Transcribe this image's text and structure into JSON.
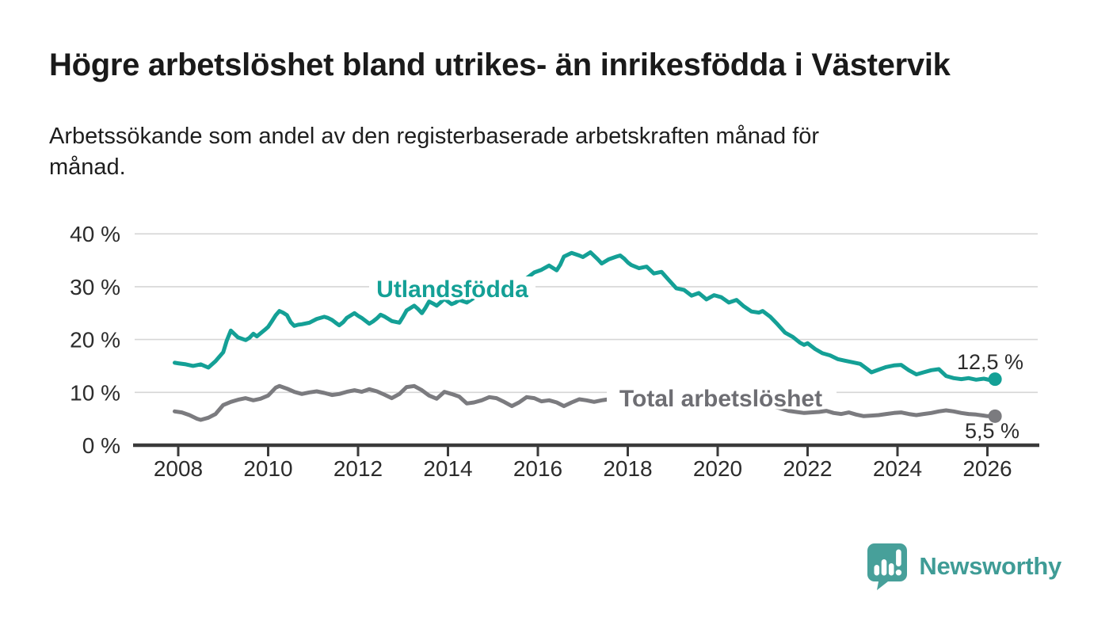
{
  "header": {
    "title": "Högre arbetslöshet bland utrikes- än inrikesfödda i Västervik",
    "subtitle": "Arbetssökande som andel av den registerbaserade arbetskraften månad för månad.",
    "subtitle_lines": [
      "Arbetssökande som andel av den registerbaserade arbetskraften månad för",
      "månad."
    ]
  },
  "footer": {
    "brand": "Newsworthy",
    "logo_icon": "newsworthy-speech-bubble-barchart-icon",
    "brand_color": "#3f9c96"
  },
  "chart_data": {
    "type": "line",
    "title": "Högre arbetslöshet bland utrikes- än inrikesfödda i Västervik",
    "subtitle": "Arbetssökande som andel av den registerbaserade arbetskraften månad för månad.",
    "xlabel": "",
    "ylabel": "",
    "y_unit": "%",
    "grid": "horizontal-only",
    "legend": "inline-series-labels",
    "x_axis": {
      "range": [
        2007.03,
        2027.12
      ],
      "ticks": [
        {
          "value": 2008,
          "label": "2008"
        },
        {
          "value": 2010,
          "label": "2010"
        },
        {
          "value": 2012,
          "label": "2012"
        },
        {
          "value": 2014,
          "label": "2014"
        },
        {
          "value": 2016,
          "label": "2016"
        },
        {
          "value": 2018,
          "label": "2018"
        },
        {
          "value": 2020,
          "label": "2020"
        },
        {
          "value": 2022,
          "label": "2022"
        },
        {
          "value": 2024,
          "label": "2024"
        },
        {
          "value": 2026,
          "label": "2026"
        }
      ]
    },
    "y_axis": {
      "range": [
        0,
        42
      ],
      "ticks": [
        {
          "value": 0,
          "label": "0 %"
        },
        {
          "value": 10,
          "label": "10 %"
        },
        {
          "value": 20,
          "label": "20 %"
        },
        {
          "value": 30,
          "label": "30 %"
        },
        {
          "value": 40,
          "label": "40 %"
        }
      ]
    },
    "style": {
      "grid_color": "#d6d6d6",
      "axis_color": "#3a3a3a",
      "tick_text_color": "#2c2c2c",
      "end_label_color": "#2c2c2c",
      "background": "#ffffff"
    },
    "series": [
      {
        "name": "Utlandsfödda",
        "color": "#14a096",
        "label_color": "#14a096",
        "end_label": "12,5 %",
        "end_value": 12.5,
        "points": [
          [
            2007.92,
            15.6
          ],
          [
            2008.0,
            15.5
          ],
          [
            2008.17,
            15.3
          ],
          [
            2008.33,
            15.0
          ],
          [
            2008.5,
            15.3
          ],
          [
            2008.67,
            14.7
          ],
          [
            2008.83,
            15.9
          ],
          [
            2009.0,
            17.6
          ],
          [
            2009.08,
            19.8
          ],
          [
            2009.17,
            21.7
          ],
          [
            2009.33,
            20.4
          ],
          [
            2009.5,
            19.9
          ],
          [
            2009.58,
            20.3
          ],
          [
            2009.67,
            21.1
          ],
          [
            2009.75,
            20.6
          ],
          [
            2009.92,
            21.8
          ],
          [
            2010.0,
            22.4
          ],
          [
            2010.08,
            23.4
          ],
          [
            2010.17,
            24.6
          ],
          [
            2010.25,
            25.4
          ],
          [
            2010.33,
            25.1
          ],
          [
            2010.42,
            24.6
          ],
          [
            2010.5,
            23.3
          ],
          [
            2010.58,
            22.6
          ],
          [
            2010.67,
            22.8
          ],
          [
            2010.75,
            22.9
          ],
          [
            2010.92,
            23.2
          ],
          [
            2011.08,
            23.9
          ],
          [
            2011.25,
            24.3
          ],
          [
            2011.33,
            24.1
          ],
          [
            2011.42,
            23.7
          ],
          [
            2011.5,
            23.2
          ],
          [
            2011.58,
            22.7
          ],
          [
            2011.67,
            23.3
          ],
          [
            2011.75,
            24.1
          ],
          [
            2011.92,
            25.0
          ],
          [
            2012.0,
            24.5
          ],
          [
            2012.08,
            24.1
          ],
          [
            2012.25,
            23.0
          ],
          [
            2012.33,
            23.4
          ],
          [
            2012.42,
            24.0
          ],
          [
            2012.5,
            24.7
          ],
          [
            2012.58,
            24.4
          ],
          [
            2012.75,
            23.5
          ],
          [
            2012.92,
            23.2
          ],
          [
            2013.0,
            24.3
          ],
          [
            2013.08,
            25.5
          ],
          [
            2013.25,
            26.4
          ],
          [
            2013.33,
            25.8
          ],
          [
            2013.42,
            25.0
          ],
          [
            2013.5,
            26.0
          ],
          [
            2013.58,
            27.2
          ],
          [
            2013.67,
            26.8
          ],
          [
            2013.75,
            26.4
          ],
          [
            2013.83,
            27.0
          ],
          [
            2013.92,
            27.7
          ],
          [
            2014.0,
            27.2
          ],
          [
            2014.08,
            26.7
          ],
          [
            2014.17,
            27.0
          ],
          [
            2014.25,
            27.5
          ],
          [
            2014.42,
            27.0
          ],
          [
            2014.58,
            27.9
          ],
          [
            2014.75,
            28.3
          ],
          [
            2014.92,
            29.0
          ],
          [
            2015.08,
            29.5
          ],
          [
            2015.25,
            30.1
          ],
          [
            2015.42,
            30.8
          ],
          [
            2015.58,
            31.2
          ],
          [
            2015.75,
            31.6
          ],
          [
            2015.92,
            32.7
          ],
          [
            2016.08,
            33.2
          ],
          [
            2016.25,
            34.0
          ],
          [
            2016.42,
            33.1
          ],
          [
            2016.5,
            34.2
          ],
          [
            2016.58,
            35.7
          ],
          [
            2016.75,
            36.4
          ],
          [
            2016.92,
            35.9
          ],
          [
            2017.0,
            35.6
          ],
          [
            2017.17,
            36.5
          ],
          [
            2017.33,
            35.2
          ],
          [
            2017.42,
            34.4
          ],
          [
            2017.58,
            35.2
          ],
          [
            2017.75,
            35.7
          ],
          [
            2017.83,
            35.9
          ],
          [
            2017.92,
            35.3
          ],
          [
            2018.0,
            34.6
          ],
          [
            2018.08,
            34.1
          ],
          [
            2018.25,
            33.5
          ],
          [
            2018.42,
            33.8
          ],
          [
            2018.58,
            32.5
          ],
          [
            2018.75,
            32.8
          ],
          [
            2018.92,
            31.2
          ],
          [
            2019.08,
            29.7
          ],
          [
            2019.25,
            29.4
          ],
          [
            2019.42,
            28.3
          ],
          [
            2019.58,
            28.8
          ],
          [
            2019.75,
            27.6
          ],
          [
            2019.92,
            28.4
          ],
          [
            2020.08,
            28.0
          ],
          [
            2020.25,
            27.0
          ],
          [
            2020.42,
            27.5
          ],
          [
            2020.58,
            26.3
          ],
          [
            2020.75,
            25.3
          ],
          [
            2020.92,
            25.1
          ],
          [
            2021.0,
            25.4
          ],
          [
            2021.17,
            24.3
          ],
          [
            2021.33,
            22.9
          ],
          [
            2021.5,
            21.3
          ],
          [
            2021.67,
            20.5
          ],
          [
            2021.83,
            19.4
          ],
          [
            2021.92,
            19.0
          ],
          [
            2022.0,
            19.3
          ],
          [
            2022.17,
            18.2
          ],
          [
            2022.33,
            17.4
          ],
          [
            2022.5,
            17.0
          ],
          [
            2022.67,
            16.3
          ],
          [
            2022.83,
            16.0
          ],
          [
            2023.0,
            15.7
          ],
          [
            2023.17,
            15.4
          ],
          [
            2023.33,
            14.4
          ],
          [
            2023.42,
            13.8
          ],
          [
            2023.58,
            14.3
          ],
          [
            2023.75,
            14.8
          ],
          [
            2023.92,
            15.1
          ],
          [
            2024.08,
            15.2
          ],
          [
            2024.25,
            14.2
          ],
          [
            2024.42,
            13.4
          ],
          [
            2024.58,
            13.8
          ],
          [
            2024.75,
            14.2
          ],
          [
            2024.92,
            14.4
          ],
          [
            2025.08,
            13.1
          ],
          [
            2025.25,
            12.7
          ],
          [
            2025.42,
            12.5
          ],
          [
            2025.58,
            12.7
          ],
          [
            2025.75,
            12.4
          ],
          [
            2025.92,
            12.6
          ],
          [
            2026.08,
            12.3
          ],
          [
            2026.17,
            12.5
          ]
        ]
      },
      {
        "name": "Total arbetslöshet",
        "color": "#7b7b7f",
        "label_color": "#6e6e73",
        "end_label": "5,5 %",
        "end_value": 5.5,
        "points": [
          [
            2007.92,
            6.4
          ],
          [
            2008.08,
            6.2
          ],
          [
            2008.25,
            5.7
          ],
          [
            2008.42,
            5.0
          ],
          [
            2008.5,
            4.8
          ],
          [
            2008.67,
            5.2
          ],
          [
            2008.83,
            5.9
          ],
          [
            2009.0,
            7.6
          ],
          [
            2009.17,
            8.2
          ],
          [
            2009.33,
            8.6
          ],
          [
            2009.5,
            8.9
          ],
          [
            2009.67,
            8.5
          ],
          [
            2009.83,
            8.8
          ],
          [
            2010.0,
            9.4
          ],
          [
            2010.17,
            10.9
          ],
          [
            2010.25,
            11.2
          ],
          [
            2010.42,
            10.7
          ],
          [
            2010.58,
            10.1
          ],
          [
            2010.75,
            9.7
          ],
          [
            2010.92,
            10.0
          ],
          [
            2011.08,
            10.2
          ],
          [
            2011.25,
            9.9
          ],
          [
            2011.42,
            9.5
          ],
          [
            2011.58,
            9.7
          ],
          [
            2011.75,
            10.1
          ],
          [
            2011.92,
            10.4
          ],
          [
            2012.08,
            10.1
          ],
          [
            2012.25,
            10.6
          ],
          [
            2012.42,
            10.2
          ],
          [
            2012.58,
            9.6
          ],
          [
            2012.75,
            8.9
          ],
          [
            2012.92,
            9.7
          ],
          [
            2013.08,
            11.0
          ],
          [
            2013.25,
            11.2
          ],
          [
            2013.42,
            10.4
          ],
          [
            2013.58,
            9.4
          ],
          [
            2013.75,
            8.8
          ],
          [
            2013.92,
            10.1
          ],
          [
            2014.08,
            9.7
          ],
          [
            2014.25,
            9.2
          ],
          [
            2014.42,
            7.9
          ],
          [
            2014.58,
            8.1
          ],
          [
            2014.75,
            8.5
          ],
          [
            2014.92,
            9.1
          ],
          [
            2015.08,
            8.9
          ],
          [
            2015.25,
            8.2
          ],
          [
            2015.42,
            7.4
          ],
          [
            2015.58,
            8.1
          ],
          [
            2015.75,
            9.1
          ],
          [
            2015.92,
            8.9
          ],
          [
            2016.08,
            8.3
          ],
          [
            2016.25,
            8.5
          ],
          [
            2016.42,
            8.1
          ],
          [
            2016.58,
            7.4
          ],
          [
            2016.75,
            8.1
          ],
          [
            2016.92,
            8.7
          ],
          [
            2017.08,
            8.5
          ],
          [
            2017.25,
            8.2
          ],
          [
            2017.42,
            8.5
          ],
          [
            2017.58,
            8.7
          ],
          [
            2017.75,
            8.4
          ],
          [
            2017.92,
            8.1
          ],
          [
            2018.08,
            8.3
          ],
          [
            2018.25,
            8.5
          ],
          [
            2018.42,
            8.2
          ],
          [
            2018.58,
            7.9
          ],
          [
            2018.75,
            8.1
          ],
          [
            2018.92,
            8.4
          ],
          [
            2019.08,
            8.2
          ],
          [
            2019.25,
            8.0
          ],
          [
            2019.42,
            7.8
          ],
          [
            2019.58,
            8.0
          ],
          [
            2019.75,
            8.2
          ],
          [
            2019.92,
            8.6
          ],
          [
            2020.08,
            9.0
          ],
          [
            2020.25,
            9.6
          ],
          [
            2020.42,
            9.9
          ],
          [
            2020.58,
            9.5
          ],
          [
            2020.75,
            9.0
          ],
          [
            2020.92,
            8.5
          ],
          [
            2021.08,
            8.0
          ],
          [
            2021.25,
            7.4
          ],
          [
            2021.42,
            6.9
          ],
          [
            2021.58,
            6.5
          ],
          [
            2021.75,
            6.3
          ],
          [
            2021.92,
            6.1
          ],
          [
            2022.08,
            6.2
          ],
          [
            2022.25,
            6.3
          ],
          [
            2022.42,
            6.5
          ],
          [
            2022.58,
            6.1
          ],
          [
            2022.75,
            5.9
          ],
          [
            2022.92,
            6.2
          ],
          [
            2023.08,
            5.8
          ],
          [
            2023.25,
            5.5
          ],
          [
            2023.42,
            5.6
          ],
          [
            2023.58,
            5.7
          ],
          [
            2023.75,
            5.9
          ],
          [
            2023.92,
            6.1
          ],
          [
            2024.08,
            6.2
          ],
          [
            2024.25,
            5.9
          ],
          [
            2024.42,
            5.7
          ],
          [
            2024.58,
            5.9
          ],
          [
            2024.75,
            6.1
          ],
          [
            2024.92,
            6.4
          ],
          [
            2025.08,
            6.6
          ],
          [
            2025.25,
            6.4
          ],
          [
            2025.42,
            6.1
          ],
          [
            2025.58,
            5.9
          ],
          [
            2025.75,
            5.8
          ],
          [
            2025.92,
            5.6
          ],
          [
            2026.0,
            5.5
          ],
          [
            2026.17,
            5.5
          ]
        ]
      }
    ]
  }
}
